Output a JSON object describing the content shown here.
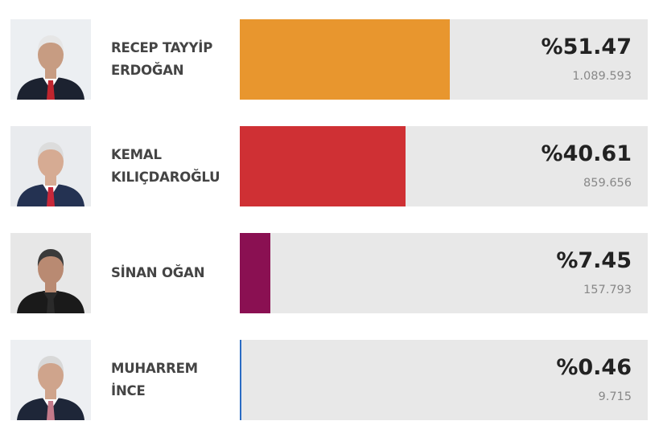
{
  "chart_data": {
    "type": "bar",
    "orientation": "horizontal",
    "xlim": [
      0,
      100
    ],
    "candidates": [
      {
        "name_line1": "RECEP TAYYİP",
        "name_line2": "ERDOĞAN",
        "percent_label": "%51.47",
        "percent": 51.47,
        "votes_label": "1.089.593",
        "color": "#e8962e",
        "photo": {
          "bg": "#eceff2",
          "hair": "#e6e6e6",
          "skin": "#c79c82",
          "suit": "#1c2230",
          "shirt": "#ffffff",
          "tie": "#c0252e"
        }
      },
      {
        "name_line1": "KEMAL",
        "name_line2": "KILIÇDAROĞLU",
        "percent_label": "%40.61",
        "percent": 40.61,
        "votes_label": "859.656",
        "color": "#cf3034",
        "photo": {
          "bg": "#e9ebee",
          "hair": "#dcdcdc",
          "skin": "#d6ab93",
          "suit": "#243252",
          "shirt": "#ffffff",
          "tie": "#c8283a"
        }
      },
      {
        "name_line1": "SİNAN OĞAN",
        "name_line2": "",
        "percent_label": "%7.45",
        "percent": 7.45,
        "votes_label": "157.793",
        "color": "#8a1052",
        "photo": {
          "bg": "#e7e7e7",
          "hair": "#3a3a3a",
          "skin": "#b98a72",
          "suit": "#1a1a1a",
          "shirt": "#2a2a2a",
          "tie": "#2a2a2a"
        }
      },
      {
        "name_line1": "MUHARREM",
        "name_line2": "İNCE",
        "percent_label": "%0.46",
        "percent": 0.46,
        "votes_label": "9.715",
        "color": "#2a6cc4",
        "photo": {
          "bg": "#edeff2",
          "hair": "#d8d8d8",
          "skin": "#cfa48c",
          "suit": "#1e2638",
          "shirt": "#ffffff",
          "tie": "#c47a8a"
        }
      }
    ]
  }
}
